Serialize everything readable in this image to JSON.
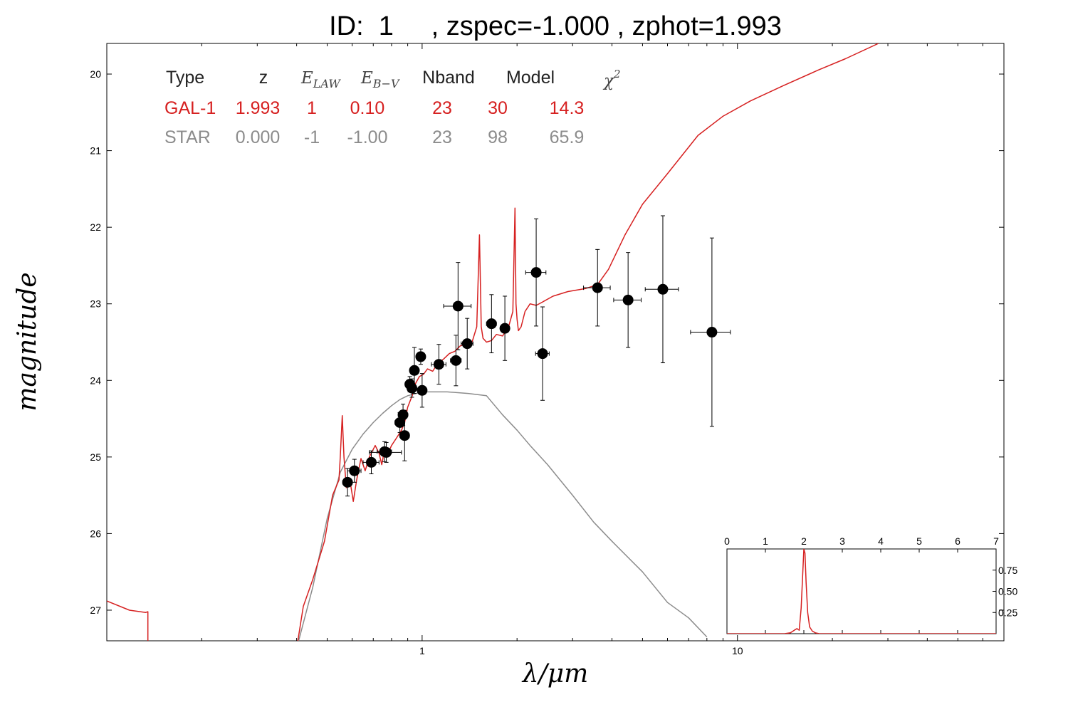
{
  "title": "ID:  1     , zspec=-1.000 , zphot=1.993",
  "colors": {
    "galaxy": "#d62020",
    "star": "#8c8c8c",
    "points": "#000000"
  },
  "chart_data": [
    {
      "type": "line",
      "xlabel": "λ/μm",
      "ylabel": "magnitude",
      "xscale": "log",
      "xlim": [
        0.1,
        70
      ],
      "ylim": [
        27.4,
        19.6
      ],
      "y_inverted": true,
      "grid": false,
      "yticks": [
        20,
        21,
        22,
        23,
        24,
        25,
        26,
        27
      ],
      "xticks_major": [
        1,
        10
      ],
      "xtick_labels": [
        "1",
        "10"
      ],
      "table": {
        "headers": [
          "Type",
          "z",
          "E_LAW",
          "E_B-V",
          "Nband",
          "Model",
          "χ²"
        ],
        "header_math": {
          "E_LAW": {
            "base": "E",
            "sub": "LAW"
          },
          "E_B-V": {
            "base": "E",
            "sub": "B−V"
          },
          "chi2": {
            "base": "χ",
            "sup": "2"
          }
        },
        "rows": [
          {
            "type": "GAL-1",
            "z": "1.993",
            "law": "1",
            "ebv": "0.10",
            "nband": "23",
            "model": "30",
            "chi2": "14.3",
            "color": "#d62020"
          },
          {
            "type": "STAR",
            "z": "0.000",
            "law": "-1",
            "ebv": "-1.00",
            "nband": "23",
            "model": "98",
            "chi2": "65.9",
            "color": "#8c8c8c"
          }
        ]
      },
      "points": [
        {
          "x": 0.58,
          "y": 25.33,
          "xerr": 0.02,
          "yerr": 0.18
        },
        {
          "x": 0.61,
          "y": 25.18,
          "xerr": 0.03,
          "yerr": 0.15
        },
        {
          "x": 0.69,
          "y": 25.07,
          "xerr": 0.04,
          "yerr": 0.15
        },
        {
          "x": 0.76,
          "y": 24.93,
          "xerr": 0.04,
          "yerr": 0.13
        },
        {
          "x": 0.77,
          "y": 24.94,
          "xerr": 0.09,
          "yerr": 0.13
        },
        {
          "x": 0.85,
          "y": 24.55,
          "xerr": 0.03,
          "yerr": 0.13
        },
        {
          "x": 0.87,
          "y": 24.45,
          "xerr": 0.03,
          "yerr": 0.14
        },
        {
          "x": 0.88,
          "y": 24.72,
          "xerr": 0.03,
          "yerr": 0.33
        },
        {
          "x": 0.914,
          "y": 24.05,
          "xerr": 0.02,
          "yerr": 0.1
        },
        {
          "x": 0.928,
          "y": 24.1,
          "xerr": 0.02,
          "yerr": 0.12
        },
        {
          "x": 0.945,
          "y": 23.87,
          "xerr": 0.02,
          "yerr": 0.3
        },
        {
          "x": 0.99,
          "y": 23.69,
          "xerr": 0.02,
          "yerr": 0.1
        },
        {
          "x": 1.0,
          "y": 24.13,
          "xerr": 0.03,
          "yerr": 0.22
        },
        {
          "x": 1.13,
          "y": 23.79,
          "xerr": 0.06,
          "yerr": 0.26
        },
        {
          "x": 1.28,
          "y": 23.74,
          "xerr": 0.05,
          "yerr": 0.33
        },
        {
          "x": 1.3,
          "y": 23.03,
          "xerr": 0.13,
          "yerr": 0.57
        },
        {
          "x": 1.39,
          "y": 23.52,
          "xerr": 0.06,
          "yerr": 0.33
        },
        {
          "x": 1.66,
          "y": 23.26,
          "xerr": 0.06,
          "yerr": 0.38
        },
        {
          "x": 1.83,
          "y": 23.32,
          "xerr": 0.06,
          "yerr": 0.42
        },
        {
          "x": 2.3,
          "y": 22.59,
          "xerr": 0.17,
          "yerr": 0.7
        },
        {
          "x": 2.41,
          "y": 23.65,
          "xerr": 0.12,
          "yerr": 0.61
        },
        {
          "x": 3.6,
          "y": 22.79,
          "xerr": 0.35,
          "yerr": 0.5
        },
        {
          "x": 4.5,
          "y": 22.95,
          "xerr": 0.45,
          "yerr": 0.62
        },
        {
          "x": 5.8,
          "y": 22.81,
          "xerr": 0.7,
          "yerr": 0.96
        },
        {
          "x": 8.3,
          "y": 23.37,
          "xerr": 1.2,
          "yerr": 1.23
        }
      ],
      "series": [
        {
          "name": "GAL-1",
          "color": "#d62020",
          "x": [
            0.1,
            0.118,
            0.133,
            0.135,
            0.135,
            0.4,
            0.42,
            0.45,
            0.49,
            0.52,
            0.545,
            0.55,
            0.558,
            0.565,
            0.575,
            0.59,
            0.605,
            0.62,
            0.64,
            0.66,
            0.68,
            0.71,
            0.73,
            0.745,
            0.76,
            0.78,
            0.8,
            0.83,
            0.86,
            0.88,
            0.9,
            0.93,
            0.95,
            0.98,
            1.01,
            1.04,
            1.08,
            1.12,
            1.17,
            1.22,
            1.27,
            1.32,
            1.38,
            1.44,
            1.49,
            1.52,
            1.54,
            1.56,
            1.6,
            1.66,
            1.72,
            1.8,
            1.88,
            1.94,
            1.97,
            1.985,
            2.0,
            2.02,
            2.06,
            2.12,
            2.2,
            2.3,
            2.4,
            2.6,
            2.9,
            3.3,
            3.6,
            3.9,
            4.4,
            5.0,
            6.0,
            7.5,
            9.0,
            11.0,
            14.0,
            18.0,
            22.0,
            28.0
          ],
          "y": [
            26.88,
            27.0,
            27.03,
            27.02,
            27.5,
            27.5,
            26.95,
            26.6,
            26.1,
            25.5,
            25.3,
            25.0,
            24.46,
            25.0,
            25.4,
            25.3,
            25.58,
            25.3,
            25.02,
            25.18,
            25.0,
            24.85,
            24.95,
            25.1,
            24.9,
            24.95,
            24.85,
            24.75,
            24.65,
            24.55,
            24.35,
            24.2,
            24.05,
            23.95,
            23.92,
            23.85,
            23.88,
            23.78,
            23.72,
            23.65,
            23.62,
            23.55,
            23.52,
            23.5,
            23.3,
            22.1,
            23.3,
            23.45,
            23.5,
            23.48,
            23.4,
            23.42,
            23.3,
            23.1,
            21.75,
            23.0,
            23.2,
            23.35,
            23.3,
            23.1,
            23.0,
            23.02,
            22.98,
            22.9,
            22.84,
            22.8,
            22.75,
            22.55,
            22.1,
            21.7,
            21.3,
            20.8,
            20.55,
            20.35,
            20.15,
            19.95,
            19.8,
            19.6
          ]
        },
        {
          "name": "STAR",
          "color": "#8c8c8c",
          "x": [
            0.4,
            0.45,
            0.5,
            0.55,
            0.6,
            0.65,
            0.7,
            0.75,
            0.8,
            0.85,
            0.9,
            1.0,
            1.2,
            1.4,
            1.6,
            1.8,
            2.0,
            2.2,
            2.5,
            3.0,
            3.5,
            4.0,
            5.0,
            6.0,
            7.0,
            8.0
          ],
          "y": [
            27.5,
            26.7,
            25.8,
            25.2,
            24.9,
            24.7,
            24.55,
            24.43,
            24.33,
            24.25,
            24.2,
            24.15,
            24.15,
            24.17,
            24.2,
            24.45,
            24.65,
            24.85,
            25.1,
            25.5,
            25.85,
            26.1,
            26.5,
            26.9,
            27.1,
            27.35
          ]
        }
      ]
    },
    {
      "type": "line",
      "name": "inset",
      "xlim": [
        0,
        7
      ],
      "ylim": [
        0,
        1.0
      ],
      "xticks": [
        0,
        1,
        2,
        3,
        4,
        5,
        6,
        7
      ],
      "yticks": [
        0.25,
        0.5,
        0.75
      ],
      "ytick_labels": [
        "0.25",
        "0.50",
        "0.75"
      ],
      "series": [
        {
          "color": "#d62020",
          "x": [
            0,
            1.5,
            1.65,
            1.75,
            1.82,
            1.88,
            1.93,
            1.97,
            2.0,
            2.03,
            2.06,
            2.1,
            2.15,
            2.22,
            2.3,
            2.4,
            7
          ],
          "y": [
            0,
            0,
            0.01,
            0.04,
            0.06,
            0.04,
            0.3,
            0.7,
            1.0,
            0.95,
            0.6,
            0.25,
            0.08,
            0.03,
            0.01,
            0,
            0
          ]
        }
      ]
    }
  ]
}
